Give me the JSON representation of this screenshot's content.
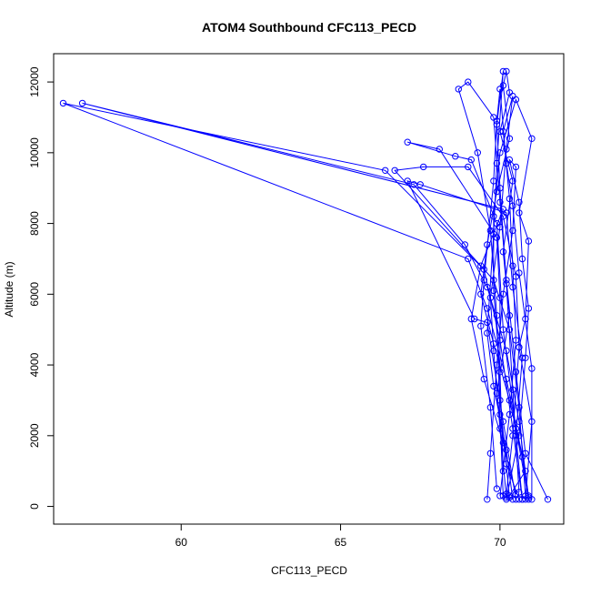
{
  "chart_data": {
    "type": "scatter",
    "title": "ATOM4 Southbound CFC113_PECD",
    "xlabel": "CFC113_PECD",
    "ylabel": "Altitude (m)",
    "xlim": [
      56.0,
      72.0
    ],
    "ylim": [
      -500,
      12800
    ],
    "xticks": [
      60,
      65,
      70
    ],
    "yticks": [
      0,
      2000,
      4000,
      6000,
      8000,
      10000,
      12000
    ],
    "xtick_labels": [
      "60",
      "65",
      "70"
    ],
    "ytick_labels": [
      "0",
      "2000",
      "4000",
      "6000",
      "8000",
      "10000",
      "12000"
    ],
    "color": "#0000ff",
    "marker": "open-circle",
    "connect_points": true,
    "series": [
      {
        "points": [
          [
            70.6,
            200
          ],
          [
            70.2,
            1200
          ],
          [
            69.9,
            3200
          ],
          [
            70.3,
            5400
          ],
          [
            70.1,
            7200
          ],
          [
            70.4,
            9200
          ],
          [
            70.0,
            10600
          ],
          [
            70.3,
            11700
          ],
          [
            70.2,
            12300
          ],
          [
            70.1,
            11900
          ],
          [
            70.3,
            10400
          ],
          [
            69.9,
            8900
          ],
          [
            69.6,
            7400
          ],
          [
            69.4,
            6000
          ],
          [
            69.8,
            4600
          ],
          [
            70.3,
            3000
          ],
          [
            70.7,
            1400
          ],
          [
            70.9,
            300
          ]
        ]
      },
      {
        "points": [
          [
            71.5,
            200
          ],
          [
            70.8,
            1500
          ],
          [
            70.5,
            3800
          ],
          [
            70.2,
            6400
          ],
          [
            70.0,
            8600
          ],
          [
            69.8,
            11000
          ],
          [
            69.0,
            12000
          ],
          [
            68.7,
            11800
          ],
          [
            69.3,
            10000
          ],
          [
            69.7,
            7800
          ],
          [
            69.9,
            5400
          ],
          [
            70.0,
            2600
          ],
          [
            70.1,
            300
          ]
        ]
      },
      {
        "points": [
          [
            70.9,
            250
          ],
          [
            70.6,
            2400
          ],
          [
            70.2,
            4400
          ],
          [
            69.6,
            6200
          ],
          [
            68.9,
            7400
          ],
          [
            67.3,
            9100
          ],
          [
            56.9,
            11400
          ],
          [
            70.1,
            8400
          ],
          [
            69.4,
            6800
          ],
          [
            69.1,
            5300
          ],
          [
            69.5,
            3600
          ],
          [
            70.1,
            1800
          ],
          [
            70.5,
            350
          ]
        ]
      },
      {
        "points": [
          [
            70.7,
            200
          ],
          [
            70.4,
            2200
          ],
          [
            70.0,
            4700
          ],
          [
            69.5,
            6700
          ],
          [
            66.4,
            9500
          ],
          [
            56.3,
            11400
          ],
          [
            69.0,
            7000
          ],
          [
            69.6,
            5600
          ],
          [
            70.2,
            3600
          ],
          [
            70.8,
            1000
          ],
          [
            70.3,
            300
          ]
        ]
      },
      {
        "points": [
          [
            70.2,
            200
          ],
          [
            70.6,
            2000
          ],
          [
            70.8,
            4200
          ],
          [
            70.9,
            5600
          ],
          [
            70.7,
            7000
          ],
          [
            70.6,
            8600
          ],
          [
            70.3,
            9800
          ],
          [
            70.5,
            9600
          ],
          [
            70.4,
            7800
          ],
          [
            70.1,
            6000
          ],
          [
            69.9,
            4000
          ],
          [
            69.7,
            1500
          ],
          [
            69.6,
            200
          ]
        ]
      },
      {
        "points": [
          [
            70.3,
            250
          ],
          [
            70.0,
            3000
          ],
          [
            70.0,
            5900
          ],
          [
            69.9,
            7600
          ],
          [
            68.1,
            10100
          ],
          [
            67.1,
            10300
          ],
          [
            68.6,
            9900
          ],
          [
            69.1,
            9800
          ],
          [
            69.9,
            8000
          ],
          [
            70.1,
            5000
          ],
          [
            70.5,
            2200
          ],
          [
            70.9,
            200
          ]
        ]
      },
      {
        "points": [
          [
            70.8,
            300
          ],
          [
            70.6,
            2800
          ],
          [
            70.3,
            5000
          ],
          [
            69.8,
            6400
          ],
          [
            66.7,
            9500
          ],
          [
            67.6,
            9600
          ],
          [
            69.0,
            9600
          ],
          [
            70.1,
            8200
          ],
          [
            70.5,
            6500
          ],
          [
            70.6,
            4500
          ],
          [
            71.0,
            2400
          ],
          [
            70.8,
            200
          ]
        ]
      },
      {
        "points": [
          [
            70.2,
            350
          ],
          [
            70.4,
            2000
          ],
          [
            70.6,
            4500
          ],
          [
            70.8,
            5300
          ],
          [
            70.9,
            7500
          ],
          [
            70.6,
            8300
          ],
          [
            71.0,
            10400
          ],
          [
            70.5,
            11500
          ],
          [
            70.0,
            10000
          ],
          [
            69.8,
            8200
          ],
          [
            69.8,
            6100
          ],
          [
            70.0,
            3800
          ],
          [
            70.1,
            1000
          ]
        ]
      },
      {
        "points": [
          [
            71.0,
            200
          ],
          [
            71.0,
            3900
          ],
          [
            70.6,
            6600
          ],
          [
            70.4,
            8500
          ],
          [
            70.2,
            9700
          ],
          [
            70.0,
            11800
          ],
          [
            69.9,
            10900
          ],
          [
            69.8,
            9200
          ],
          [
            69.5,
            6400
          ],
          [
            69.4,
            5100
          ],
          [
            69.7,
            2800
          ],
          [
            69.9,
            500
          ]
        ]
      },
      {
        "points": [
          [
            70.5,
            200
          ],
          [
            70.1,
            2400
          ],
          [
            69.6,
            5200
          ],
          [
            69.2,
            5300
          ],
          [
            67.1,
            9200
          ],
          [
            67.5,
            9100
          ],
          [
            70.2,
            8300
          ],
          [
            70.4,
            6200
          ],
          [
            70.7,
            4200
          ],
          [
            70.5,
            2000
          ],
          [
            70.7,
            200
          ]
        ]
      },
      {
        "points": [
          [
            70.0,
            300
          ],
          [
            70.3,
            2600
          ],
          [
            70.5,
            4700
          ],
          [
            70.4,
            6800
          ],
          [
            70.3,
            8700
          ],
          [
            70.1,
            10600
          ],
          [
            70.4,
            11600
          ],
          [
            70.2,
            10100
          ],
          [
            70.0,
            7900
          ],
          [
            69.7,
            5900
          ],
          [
            69.8,
            4400
          ],
          [
            70.0,
            2200
          ],
          [
            70.2,
            250
          ]
        ]
      },
      {
        "points": [
          [
            70.6,
            400
          ],
          [
            70.4,
            3300
          ],
          [
            70.2,
            6300
          ],
          [
            70.0,
            9000
          ],
          [
            69.9,
            10800
          ],
          [
            70.1,
            12300
          ],
          [
            69.9,
            9700
          ],
          [
            69.8,
            7700
          ],
          [
            69.6,
            4900
          ],
          [
            69.8,
            3400
          ],
          [
            70.2,
            1600
          ],
          [
            70.4,
            200
          ]
        ]
      }
    ]
  }
}
